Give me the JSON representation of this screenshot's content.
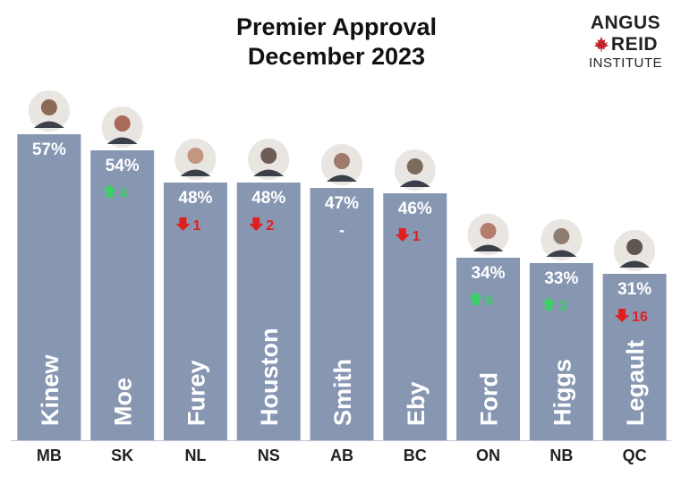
{
  "chart_title": [
    "Premier Approval",
    "December 2023"
  ],
  "logo": {
    "line1": "ANGUS",
    "line2": "REID",
    "line3": "INSTITUTE",
    "icon": "maple-leaf-icon",
    "color": "#c0272d"
  },
  "colors": {
    "bar": "#8797b2",
    "up": "#3ecf6a",
    "down": "#e02020",
    "label": "#ffffff",
    "axis": "#222222"
  },
  "chart_data": {
    "type": "bar",
    "title": "Premier Approval December 2023",
    "ylim": [
      0,
      70
    ],
    "categories": [
      "MB",
      "SK",
      "NL",
      "NS",
      "AB",
      "BC",
      "ON",
      "NB",
      "QC"
    ],
    "names": [
      "Kinew",
      "Moe",
      "Furey",
      "Houston",
      "Smith",
      "Eby",
      "Ford",
      "Higgs",
      "Legault"
    ],
    "values": [
      57,
      54,
      48,
      48,
      47,
      46,
      34,
      33,
      31
    ],
    "value_labels": [
      "57%",
      "54%",
      "48%",
      "48%",
      "47%",
      "46%",
      "34%",
      "33%",
      "31%"
    ],
    "changes": [
      {
        "dir": "none",
        "text": ""
      },
      {
        "dir": "up",
        "text": "4"
      },
      {
        "dir": "down",
        "text": "1"
      },
      {
        "dir": "down",
        "text": "2"
      },
      {
        "dir": "same",
        "text": "-"
      },
      {
        "dir": "down",
        "text": "1"
      },
      {
        "dir": "up",
        "text": "6"
      },
      {
        "dir": "up",
        "text": "3"
      },
      {
        "dir": "down",
        "text": "16"
      }
    ],
    "photo_tones": [
      "#8a6a55",
      "#a86b57",
      "#c49680",
      "#6e5d55",
      "#a07a6a",
      "#7c6a5a",
      "#b37c6c",
      "#8f7d70",
      "#5f5750"
    ]
  }
}
